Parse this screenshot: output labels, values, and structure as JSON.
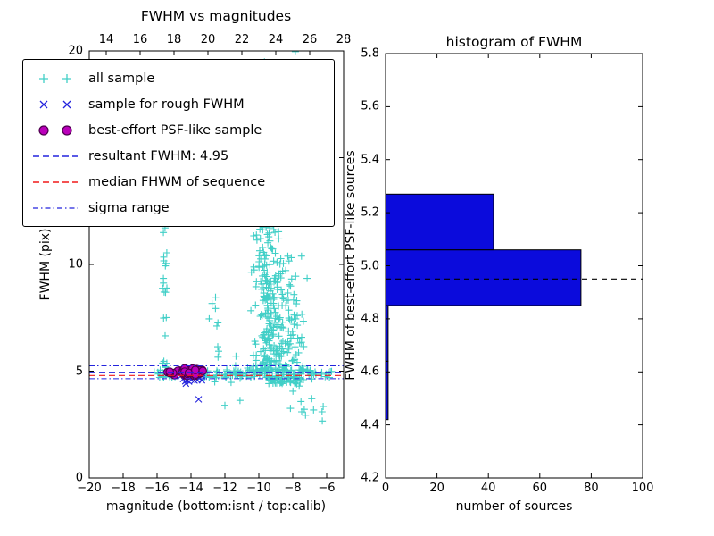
{
  "figure": {
    "background": "#ffffff"
  },
  "chart_data": [
    {
      "type": "scatter",
      "title": "FWHM vs magnitudes",
      "xlabel": "magnitude (bottom:isnt / top:calib)",
      "ylabel": "FWHM (pix)",
      "xlim": [
        -20,
        -5
      ],
      "top_xlim": [
        13,
        28
      ],
      "ylim": [
        0,
        20
      ],
      "grid": false,
      "legend_loc": "upper left",
      "xticks_bottom": {
        "values": [
          -20,
          -18,
          -16,
          -14,
          -12,
          -10,
          -8,
          -6
        ],
        "labels": [
          "−20",
          "−18",
          "−16",
          "−14",
          "−12",
          "−10",
          "−8",
          "−6"
        ]
      },
      "xticks_top": {
        "values": [
          14,
          16,
          18,
          20,
          22,
          24,
          26,
          28
        ],
        "labels": [
          "14",
          "16",
          "18",
          "20",
          "22",
          "24",
          "26",
          "28"
        ]
      },
      "yticks": {
        "values": [
          0,
          5,
          10,
          15,
          20
        ],
        "labels": [
          "0",
          "5",
          "10",
          "15",
          "20"
        ]
      },
      "series": [
        {
          "name": "all sample",
          "marker": "plus",
          "color": "#41cfc7",
          "seed": 42,
          "clusters": [
            {
              "x": [
                -15.68,
                -15.38
              ],
              "y": [
                4.95,
                13.3
              ],
              "n": 24
            },
            {
              "x": [
                -16.2,
                -13.0
              ],
              "y": [
                4.7,
                5.05
              ],
              "n": 50
            },
            {
              "x": [
                -13.0,
                -9.6
              ],
              "y": [
                4.68,
                5.06
              ],
              "n": 48
            },
            {
              "x": [
                -9.6,
                -5.65
              ],
              "y": [
                4.55,
                5.12
              ],
              "n": 62
            },
            {
              "x": [
                -10.5,
                -8.6
              ],
              "y": [
                5.0,
                13.5
              ],
              "n": 190,
              "ybias": "low",
              "xbias": "center"
            },
            {
              "x": [
                -9.7,
                -7.3
              ],
              "y": [
                4.4,
                9.5
              ],
              "n": 150,
              "ybias": "low",
              "xbias": "center"
            },
            {
              "x": [
                -11.0,
                -6.9
              ],
              "y": [
                9.0,
                16.5
              ],
              "n": 60,
              "xbias": "center"
            },
            {
              "x": [
                -10.3,
                -7.7
              ],
              "y": [
                16.0,
                20.0
              ],
              "n": 26
            },
            {
              "x": [
                -12.7,
                -10.5
              ],
              "y": [
                3.2,
                6.3
              ],
              "n": 14
            },
            {
              "x": [
                -8.7,
                -6.0
              ],
              "y": [
                2.6,
                4.4
              ],
              "n": 12
            },
            {
              "x": [
                -12.95,
                -12.35
              ],
              "y": [
                5.1,
                9.2
              ],
              "n": 7
            },
            {
              "x": [
                -10.15,
                -9.85
              ],
              "y": [
                13.0,
                19.5
              ],
              "n": 10
            }
          ]
        },
        {
          "name": "sample for rough FWHM",
          "marker": "x",
          "color": "#2323dd",
          "seed": 11,
          "clusters": [
            {
              "x": [
                -14.75,
                -13.1
              ],
              "y": [
                4.5,
                5.0
              ],
              "n": 26
            }
          ],
          "points": [
            [
              -13.55,
              3.68
            ],
            [
              -14.3,
              4.42
            ]
          ]
        },
        {
          "name": "best-effort PSF-like sample",
          "marker": "circle",
          "color": "#ba00ba",
          "edge": "#4d004d",
          "seed": 3,
          "clusters": [
            {
              "x": [
                -15.4,
                -13.2
              ],
              "y": [
                4.78,
                5.14
              ],
              "n": 40
            }
          ]
        }
      ],
      "hlines": [
        {
          "name": "resultant-fwhm-line",
          "label": "resultant FWHM: 4.95",
          "y": 4.95,
          "color": "#2323dd",
          "dash": "7,4",
          "width": 1.2
        },
        {
          "name": "median-fwhm-line",
          "label": "median FHWM of sequence",
          "y": 4.8,
          "color": "#f01818",
          "dash": "7,4",
          "width": 1.2
        },
        {
          "name": "sigma-upper-line",
          "label": "sigma range",
          "y": 5.25,
          "color": "#2323dd",
          "dash": "6,3,1.5,3",
          "width": 1
        },
        {
          "name": "sigma-lower-line",
          "label": "sigma range",
          "y": 4.65,
          "color": "#2323dd",
          "dash": "6,3,1.5,3",
          "width": 1
        }
      ],
      "legend": {
        "entries": [
          {
            "label": "all sample",
            "glyph": "plus-pair",
            "color": "#41cfc7"
          },
          {
            "label": "sample for rough FWHM",
            "glyph": "x-pair",
            "color": "#2323dd"
          },
          {
            "label": "best-effort PSF-like sample",
            "glyph": "dot-pair",
            "color": "#ba00ba",
            "edge": "#4d004d"
          },
          {
            "label": "resultant FWHM: 4.95",
            "glyph": "dashed-line",
            "color": "#2323dd"
          },
          {
            "label": "median FHWM of sequence",
            "glyph": "dashed-line",
            "color": "#f01818"
          },
          {
            "label": "sigma range",
            "glyph": "dashdot-line",
            "color": "#2323dd"
          }
        ]
      }
    },
    {
      "type": "bar",
      "orientation": "horizontal",
      "title": "histogram of FWHM",
      "xlabel": "number of sources",
      "ylabel": "FWHM of best-effort PSF-like sources",
      "xlim": [
        0,
        100
      ],
      "ylim": [
        4.2,
        5.8
      ],
      "grid": false,
      "xticks": {
        "values": [
          0,
          20,
          40,
          60,
          80,
          100
        ],
        "labels": [
          "0",
          "20",
          "40",
          "60",
          "80",
          "100"
        ]
      },
      "yticks": {
        "values": [
          4.2,
          4.4,
          4.6,
          4.8,
          5.0,
          5.2,
          5.4,
          5.6,
          5.8
        ],
        "labels": [
          "4.2",
          "4.4",
          "4.6",
          "4.8",
          "5.0",
          "5.2",
          "5.4",
          "5.6",
          "5.8"
        ]
      },
      "bins": [
        {
          "y0": 4.42,
          "y1": 4.64,
          "count": 1
        },
        {
          "y0": 4.64,
          "y1": 4.85,
          "count": 1
        },
        {
          "y0": 4.85,
          "y1": 5.06,
          "count": 76
        },
        {
          "y0": 5.06,
          "y1": 5.27,
          "count": 42
        }
      ],
      "median_line_y": 4.95,
      "median_line_color": "#000000",
      "bar_color": "#0b0bdc",
      "bar_edge": "#000000"
    }
  ]
}
